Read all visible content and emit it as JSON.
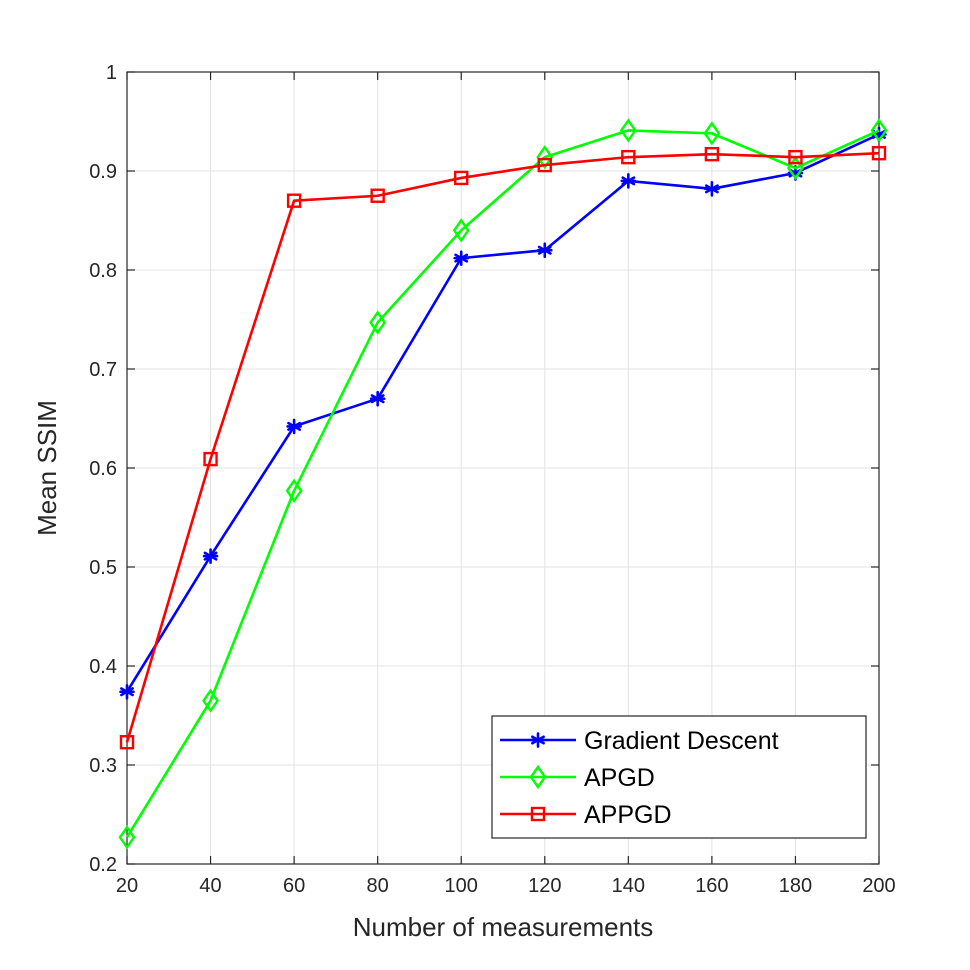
{
  "chart_data": {
    "type": "line",
    "title": "",
    "xlabel": "Number of measurements",
    "ylabel": "Mean SSIM",
    "xlim": [
      20,
      200
    ],
    "ylim": [
      0.2,
      1
    ],
    "xticks": [
      20,
      40,
      60,
      80,
      100,
      120,
      140,
      160,
      180,
      200
    ],
    "yticks": [
      0.2,
      0.3,
      0.4,
      0.5,
      0.6,
      0.7,
      0.8,
      0.9,
      1
    ],
    "ytick_labels": [
      "0.2",
      "0.3",
      "0.4",
      "0.5",
      "0.6",
      "0.7",
      "0.8",
      "0.9",
      "1"
    ],
    "grid": true,
    "legend_position": "bottom-right",
    "x": [
      20,
      40,
      60,
      80,
      100,
      120,
      140,
      160,
      180,
      200
    ],
    "series": [
      {
        "name": "Gradient Descent",
        "color": "#0000ff",
        "marker": "asterisk",
        "values": [
          0.374,
          0.511,
          0.642,
          0.67,
          0.812,
          0.82,
          0.89,
          0.882,
          0.898,
          0.937
        ]
      },
      {
        "name": "APGD",
        "color": "#00ff00",
        "marker": "diamond",
        "values": [
          0.227,
          0.365,
          0.577,
          0.747,
          0.84,
          0.914,
          0.941,
          0.938,
          0.903,
          0.941
        ]
      },
      {
        "name": "APPGD",
        "color": "#ff0000",
        "marker": "square",
        "values": [
          0.323,
          0.609,
          0.87,
          0.875,
          0.893,
          0.906,
          0.914,
          0.917,
          0.914,
          0.918
        ]
      }
    ]
  }
}
